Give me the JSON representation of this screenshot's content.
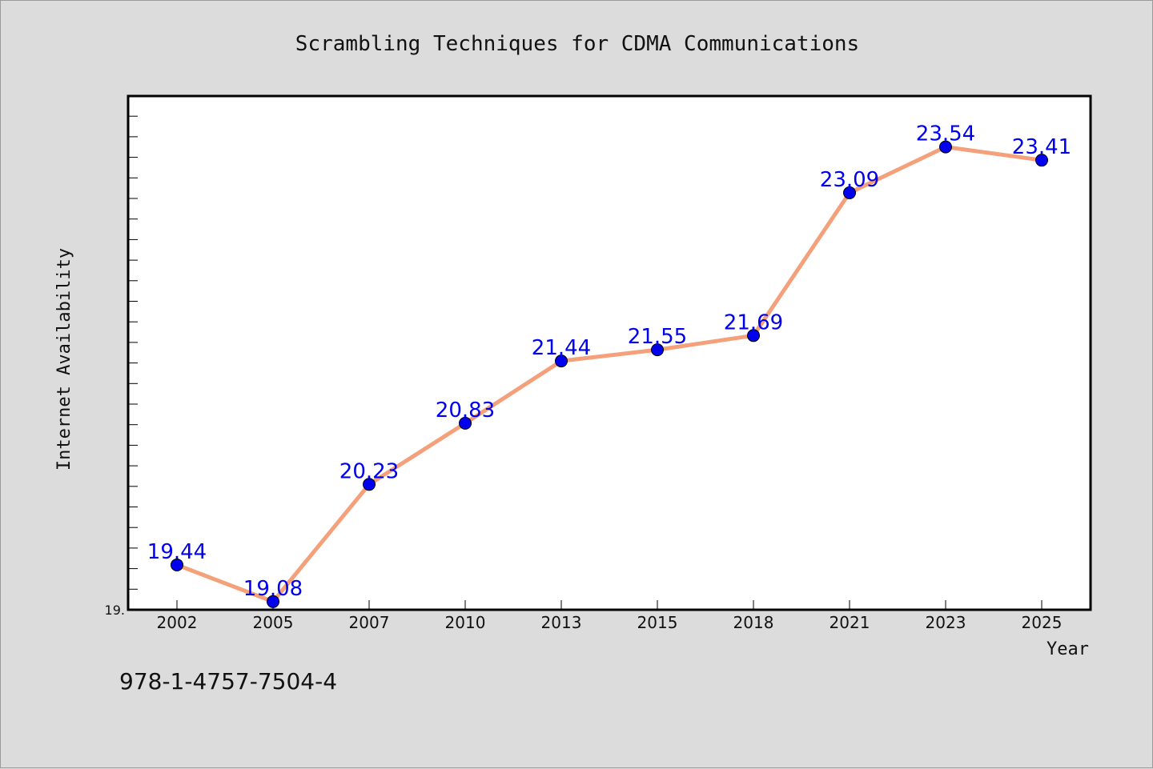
{
  "caption": "978-1-4757-7504-4",
  "chart_data": {
    "type": "line",
    "title": "Scrambling Techniques for CDMA Communications",
    "xlabel": "Year",
    "ylabel": "Internet Availability",
    "categories": [
      "2002",
      "2005",
      "2007",
      "2010",
      "2013",
      "2015",
      "2018",
      "2021",
      "2023",
      "2025"
    ],
    "values": [
      19.44,
      19.08,
      20.23,
      20.83,
      21.44,
      21.55,
      21.69,
      23.09,
      23.54,
      23.41
    ],
    "data_labels": [
      "19.44",
      "19.08",
      "20.23",
      "20.83",
      "21.44",
      "21.55",
      "21.69",
      "23.09",
      "23.54",
      "23.41"
    ],
    "y_tick_labels": [
      "19."
    ],
    "ylim": [
      19.0,
      24.0
    ],
    "grid": false,
    "line_color": "#f4a07a",
    "marker_color": "#0000ee",
    "label_color": "#0000ee"
  }
}
